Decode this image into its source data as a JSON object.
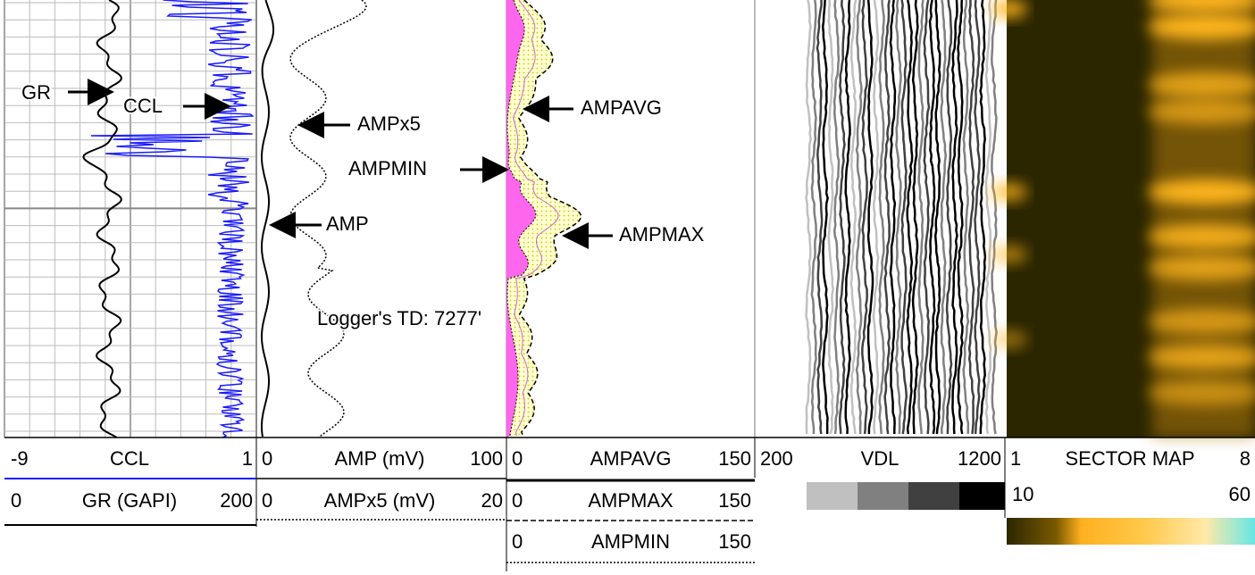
{
  "annotations": {
    "gr": "GR",
    "ccl": "CCL",
    "ampx5": "AMPx5",
    "ampavg": "AMPAVG",
    "ampmin": "AMPMIN",
    "amp": "AMP",
    "ampmax": "AMPMAX",
    "td": "Logger's TD: 7277'"
  },
  "header": {
    "track1": [
      {
        "left": -9,
        "name": "CCL",
        "right": 1
      },
      {
        "left": 0,
        "name": "GR (GAPI)",
        "right": 200
      }
    ],
    "track2": [
      {
        "left": 0,
        "name": "AMP (mV)",
        "right": 100
      },
      {
        "left": 0,
        "name": "AMPx5 (mV)",
        "right": 20
      }
    ],
    "track3": [
      {
        "left": 0,
        "name": "AMPAVG",
        "right": 150
      },
      {
        "left": 0,
        "name": "AMPMAX",
        "right": 150
      },
      {
        "left": 0,
        "name": "AMPMIN",
        "right": 150
      }
    ],
    "vdl": {
      "left": 200,
      "name": "VDL",
      "right": 1200
    },
    "sector": {
      "left": 1,
      "name": "SECTOR MAP",
      "right": 8,
      "scale_left": 10,
      "scale_right": 60
    }
  }
}
